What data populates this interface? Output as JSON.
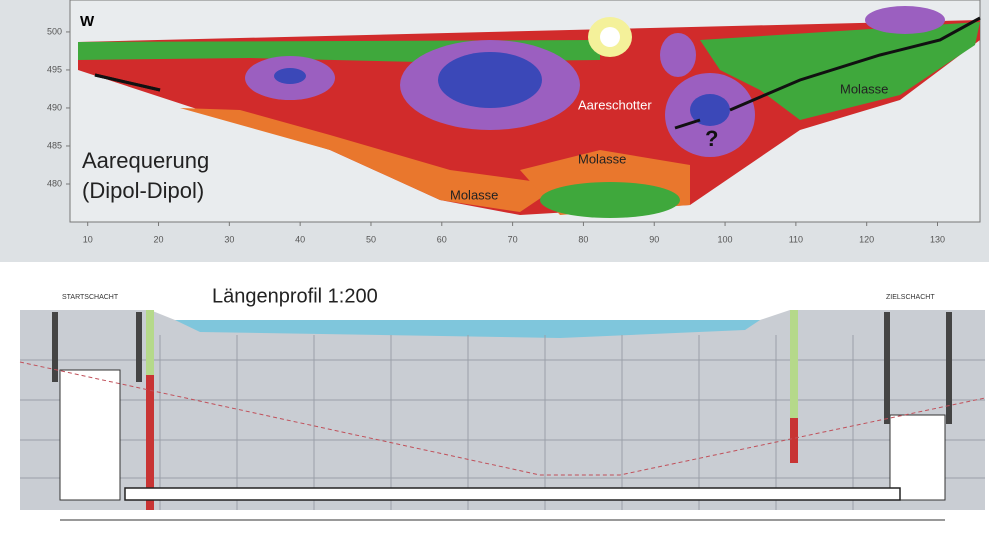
{
  "section": {
    "corner_label": "W",
    "xlim": [
      7.5,
      136
    ],
    "ylim": [
      475,
      504.2
    ],
    "xticks": [
      10,
      20,
      30,
      40,
      50,
      60,
      70,
      80,
      90,
      100,
      110,
      120,
      130
    ],
    "yticks": [
      500,
      495,
      490,
      485,
      480
    ],
    "labels": {
      "method": "Aarequerung",
      "array": "(Dipol-Dipol)",
      "gravel": "Aareschotter",
      "question": "?",
      "molasse": [
        "Molasse",
        "Molasse",
        "Molasse"
      ]
    }
  },
  "profile": {
    "title": "Längenprofil 1:200",
    "start_shaft": "STARTSCHACHT",
    "target_shaft": "ZIELSCHACHT"
  }
}
